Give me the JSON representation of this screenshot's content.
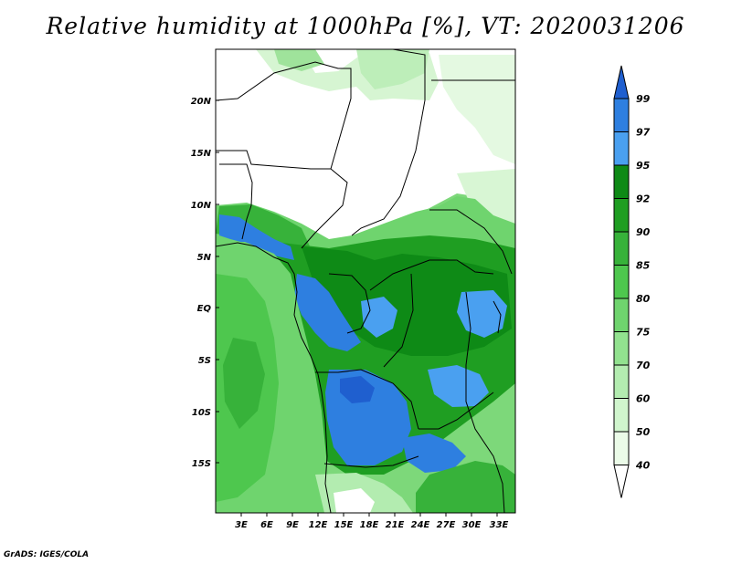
{
  "title": "Relative humidity at 1000hPa [%], VT: 2020031206",
  "credit": "GrADS: IGES/COLA",
  "map": {
    "lat_labels": [
      "20N",
      "15N",
      "10N",
      "5N",
      "EQ",
      "5S",
      "10S",
      "15S"
    ],
    "lon_labels": [
      "3E",
      "6E",
      "9E",
      "12E",
      "15E",
      "18E",
      "21E",
      "24E",
      "27E",
      "30E",
      "33E"
    ]
  },
  "colorbar": {
    "levels": [
      "99",
      "97",
      "95",
      "92",
      "90",
      "85",
      "80",
      "75",
      "70",
      "60",
      "50",
      "40"
    ],
    "colors": [
      "#1f5fcf",
      "#2e7fe0",
      "#4aa0f0",
      "#0e8a16",
      "#1f9e22",
      "#37b23a",
      "#4ec74e",
      "#6fd46e",
      "#92e28f",
      "#b3ecb0",
      "#d0f5cd",
      "#ebfbe8",
      "#ffffff"
    ]
  }
}
